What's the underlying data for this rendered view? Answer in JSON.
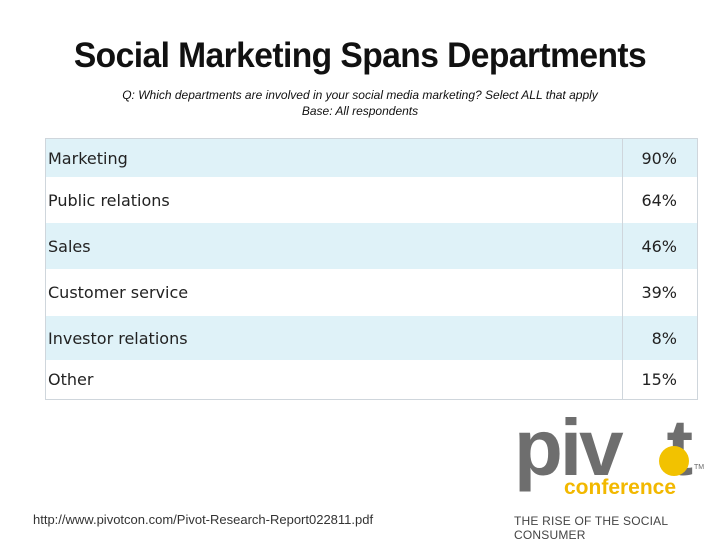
{
  "title": "Social Marketing Spans Departments",
  "question": "Q: Which departments are involved in your social media marketing?  Select ALL that apply",
  "base": "Base: All respondents",
  "chart_data": {
    "type": "table",
    "rows": [
      {
        "label": "Marketing",
        "value": 90,
        "display": "90%"
      },
      {
        "label": "Public relations",
        "value": 64,
        "display": "64%"
      },
      {
        "label": "Sales",
        "value": 46,
        "display": "46%"
      },
      {
        "label": "Customer service",
        "value": 39,
        "display": "39%"
      },
      {
        "label": "Investor relations",
        "value": 8,
        "display": "8%"
      },
      {
        "label": "Other",
        "value": 15,
        "display": "15%"
      }
    ]
  },
  "source_url": "http://www.pivotcon.com/Pivot-Research-Report022811.pdf",
  "logo": {
    "word": "pivot",
    "sub": "conference",
    "tm": "TM",
    "tagline": "THE RISE OF THE SOCIAL CONSUMER",
    "accent_color": "#f2c200",
    "text_color": "#6e6e6e"
  },
  "colors": {
    "row_shade": "#dff2f8",
    "border": "#cfd6dc"
  }
}
